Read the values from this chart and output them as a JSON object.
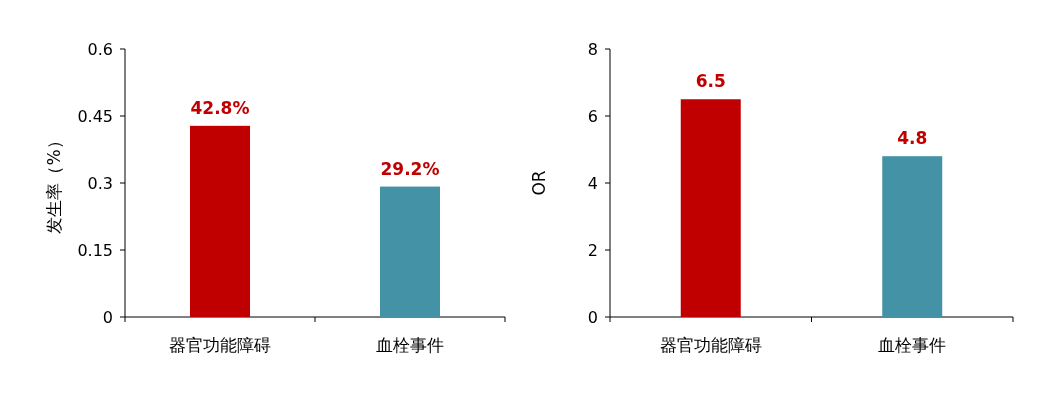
{
  "chart_data": [
    {
      "type": "bar",
      "ylabel": "发生率（%）",
      "categories": [
        "器官功能障碍",
        "血栓事件"
      ],
      "values": [
        0.428,
        0.292
      ],
      "colors": [
        "#c00000",
        "#4392a6"
      ],
      "value_labels": [
        "42.8%",
        "29.2%"
      ],
      "ylim": [
        0,
        0.6
      ],
      "yticks": [
        0,
        0.15,
        0.3,
        0.45,
        0.6
      ],
      "grid": false
    },
    {
      "type": "bar",
      "ylabel": "OR",
      "categories": [
        "器官功能障碍",
        "血栓事件"
      ],
      "values": [
        6.5,
        4.8
      ],
      "colors": [
        "#c00000",
        "#4392a6"
      ],
      "data_labels": true,
      "ylim": [
        0,
        8
      ],
      "yticks": [
        0,
        2,
        4,
        6,
        8
      ],
      "grid": false
    }
  ]
}
